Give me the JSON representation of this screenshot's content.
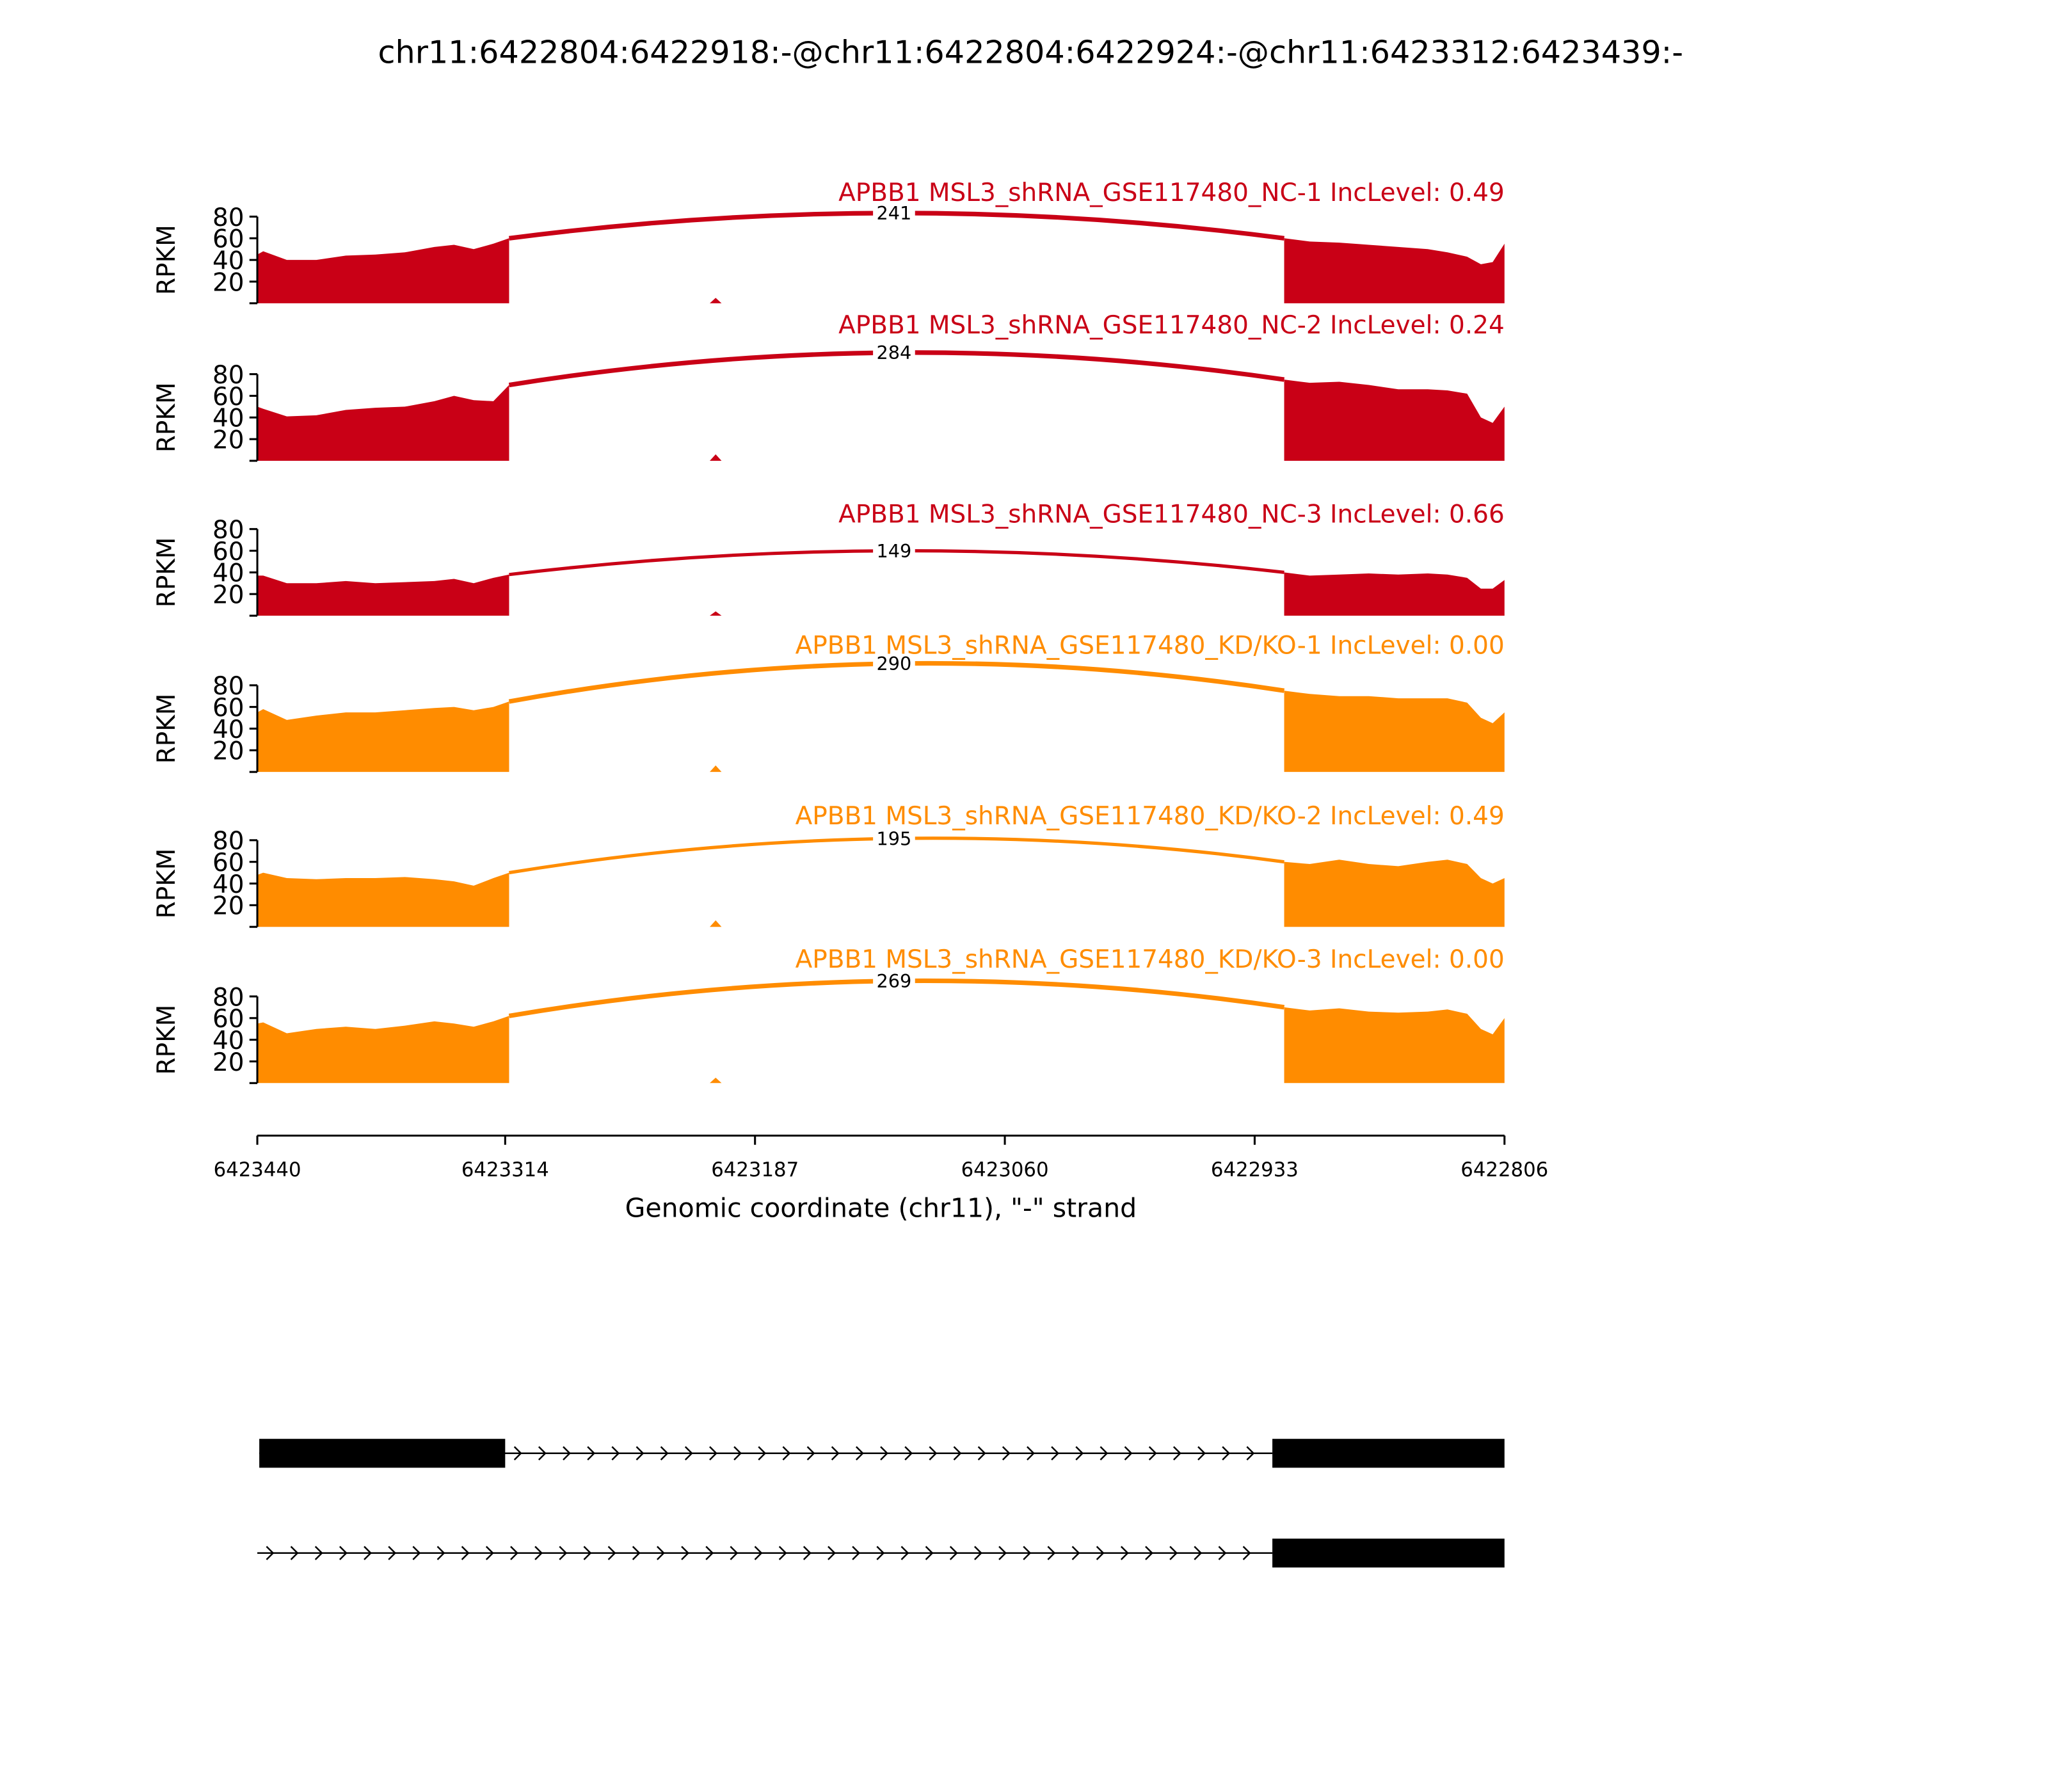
{
  "chart_data": {
    "type": "sashimi",
    "title": "chr11:6422804:6422918:-@chr11:6422804:6422924:-@chr11:6423312:6423439:-",
    "xlabel": "Genomic coordinate (chr11), \"-\" strand",
    "ylabel": "RPKM",
    "xlim": [
      6423440,
      6422806
    ],
    "xticks": [
      6423440,
      6423314,
      6423187,
      6423060,
      6422933,
      6422806
    ],
    "ylim": [
      0,
      80
    ],
    "yticks": [
      20,
      40,
      60,
      80
    ],
    "x": [
      6423440,
      6423437,
      6423425,
      6423410,
      6423395,
      6423380,
      6423365,
      6423350,
      6423340,
      6423330,
      6423320,
      6423312,
      6423260,
      6423210,
      6423207,
      6423204,
      6423000,
      6422918,
      6422905,
      6422890,
      6422875,
      6422860,
      6422845,
      6422835,
      6422825,
      6422818,
      6422812,
      6422806
    ],
    "tracks": [
      {
        "name": "APBB1 MSL3_shRNA_GSE117480_NC-1 IncLevel: 0.49",
        "color": "#c90016",
        "junction_count": 241,
        "values": [
          45,
          48,
          40,
          40,
          44,
          45,
          47,
          52,
          54,
          50,
          55,
          60,
          null,
          0,
          5,
          0,
          null,
          60,
          57,
          56,
          54,
          52,
          50,
          47,
          43,
          36,
          38,
          55
        ]
      },
      {
        "name": "APBB1 MSL3_shRNA_GSE117480_NC-2 IncLevel: 0.24",
        "color": "#c90016",
        "junction_count": 284,
        "values": [
          50,
          48,
          41,
          42,
          47,
          49,
          50,
          55,
          60,
          56,
          55,
          70,
          null,
          0,
          6,
          0,
          null,
          75,
          72,
          73,
          70,
          66,
          66,
          65,
          62,
          40,
          35,
          50
        ]
      },
      {
        "name": "APBB1 MSL3_shRNA_GSE117480_NC-3 IncLevel: 0.66",
        "color": "#c90016",
        "junction_count": 149,
        "values": [
          37,
          37,
          30,
          30,
          32,
          30,
          31,
          32,
          34,
          30,
          35,
          38,
          null,
          0,
          4,
          0,
          null,
          40,
          37,
          38,
          39,
          38,
          39,
          38,
          35,
          25,
          25,
          33
        ]
      },
      {
        "name": "APBB1 MSL3_shRNA_GSE117480_KD/KO-1 IncLevel: 0.00",
        "color": "#ff8c00",
        "junction_count": 290,
        "values": [
          55,
          58,
          48,
          52,
          55,
          55,
          57,
          59,
          60,
          57,
          60,
          65,
          null,
          0,
          6,
          0,
          null,
          75,
          72,
          70,
          70,
          68,
          68,
          68,
          64,
          50,
          45,
          55
        ]
      },
      {
        "name": "APBB1 MSL3_shRNA_GSE117480_KD/KO-2 IncLevel: 0.49",
        "color": "#ff8c00",
        "junction_count": 195,
        "values": [
          48,
          50,
          45,
          44,
          45,
          45,
          46,
          44,
          42,
          38,
          45,
          50,
          null,
          0,
          6,
          0,
          null,
          60,
          58,
          62,
          58,
          56,
          60,
          62,
          58,
          45,
          40,
          45
        ]
      },
      {
        "name": "APBB1 MSL3_shRNA_GSE117480_KD/KO-3 IncLevel: 0.00",
        "color": "#ff8c00",
        "junction_count": 269,
        "values": [
          55,
          56,
          46,
          50,
          52,
          50,
          53,
          57,
          55,
          52,
          57,
          62,
          null,
          0,
          5,
          0,
          null,
          70,
          67,
          69,
          66,
          65,
          66,
          68,
          64,
          50,
          45,
          60
        ]
      }
    ],
    "transcripts": [
      {
        "exons": [
          [
            6423439,
            6423314
          ],
          [
            6422924,
            6422806
          ]
        ],
        "start": 6423439
      },
      {
        "exons": [
          [
            6422924,
            6422806
          ]
        ],
        "start": 6423440
      }
    ]
  }
}
